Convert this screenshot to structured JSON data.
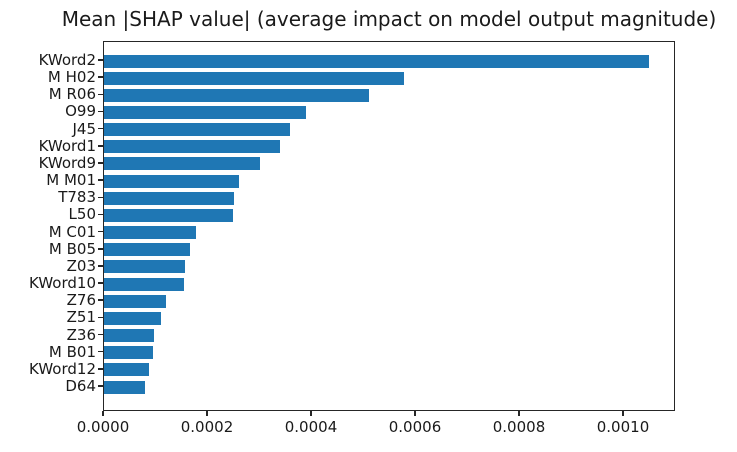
{
  "chart_data": {
    "type": "bar",
    "orientation": "horizontal",
    "title": "Mean |SHAP value| (average impact on model output magnitude)",
    "categories": [
      "KWord2",
      "M H02",
      "M R06",
      "O99",
      "J45",
      "KWord1",
      "KWord9",
      "M M01",
      "T783",
      "L50",
      "M C01",
      "M B05",
      "Z03",
      "KWord10",
      "Z76",
      "Z51",
      "Z36",
      "M B01",
      "KWord12",
      "D64"
    ],
    "values": [
      0.001048,
      0.000577,
      0.00051,
      0.000389,
      0.000358,
      0.000338,
      0.0003,
      0.00026,
      0.00025,
      0.000248,
      0.000176,
      0.000165,
      0.000156,
      0.000154,
      0.000119,
      0.000109,
      9.6e-05,
      9.5e-05,
      8.6e-05,
      7.8e-05
    ],
    "xlabel": "",
    "ylabel": "",
    "xlim": [
      0,
      0.0011
    ],
    "xticks": [
      0.0,
      0.0002,
      0.0004,
      0.0006,
      0.0008,
      0.001
    ],
    "xtick_labels": [
      "0.0000",
      "0.0002",
      "0.0004",
      "0.0006",
      "0.0008",
      "0.0010"
    ],
    "bar_color": "#1f77b4",
    "spine_color": "#262626",
    "text_color": "#1a1a1a",
    "grid": false,
    "legend_position": "none"
  }
}
